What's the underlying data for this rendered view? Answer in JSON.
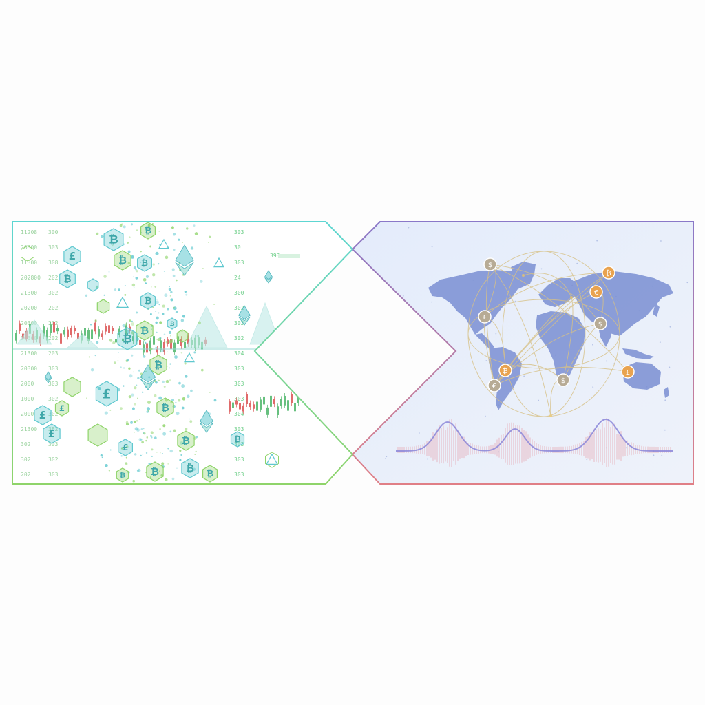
{
  "colors": {
    "left_frame_top": "#5ed6d2",
    "left_frame_bottom": "#8fd46a",
    "right_frame_top": "#8a78c8",
    "right_frame_bottom": "#e07f86",
    "panel_bg": "#e7f0fb",
    "land": "#7e92d4",
    "coin_orange": "#e9a34f",
    "coin_gray": "#b7ab95",
    "route_line": "#d7c186",
    "candle_up": "#67c07f",
    "candle_down": "#e06b6b",
    "hexagon_teal": "#5fc8cf",
    "hexagon_green": "#8fd46a",
    "wave_line": "#8b86d8",
    "wave_bars": "#e6a3ad"
  },
  "left_panel": {
    "symbols": [
      "bitcoin-symbol",
      "pound-symbol",
      "ethereum-symbol",
      "triangle-symbol"
    ],
    "numbers": [
      "11208",
      "20300",
      "11300",
      "202800",
      "21300",
      "20200",
      "20300",
      "20300",
      "21300",
      "20300",
      "2000",
      "1000",
      "2000",
      "21300",
      "302",
      "302",
      "202",
      "300",
      "303",
      "308",
      "202",
      "302",
      "202",
      "202",
      "202",
      "203",
      "303",
      "303",
      "302",
      "302",
      "382",
      "303",
      "302",
      "303",
      "303",
      "30",
      "303",
      "24",
      "300",
      "302",
      "303",
      "302",
      "304",
      "303",
      "303",
      "303",
      "304",
      "303",
      "303",
      "303",
      "303",
      "302",
      "303",
      "308",
      "24",
      "302",
      "303",
      "304",
      "302",
      "303"
    ],
    "top_tag": "393",
    "mid_tag": "20200",
    "low_tag": "25350"
  },
  "right_panel": {
    "coin_symbols": [
      "$",
      "₿",
      "€",
      "£",
      "$",
      "₿",
      "$",
      "€",
      "£"
    ]
  }
}
